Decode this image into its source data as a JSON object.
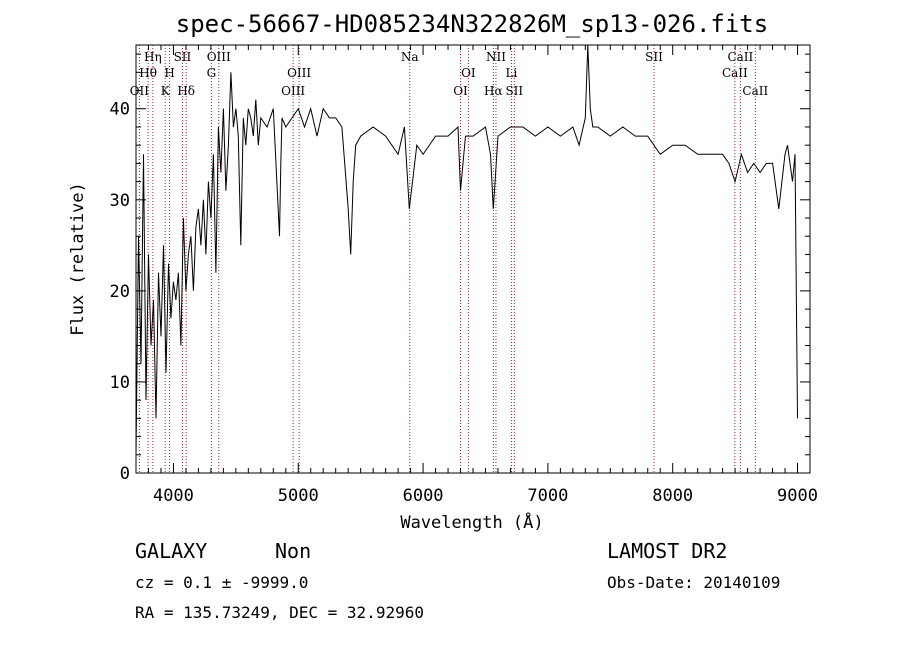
{
  "chart_data": {
    "type": "line",
    "title": "spec-56667-HD085234N322826M_sp13-026.fits",
    "xlabel": "Wavelength (Å)",
    "ylabel": "Flux (relative)",
    "xlim": [
      3700,
      9100
    ],
    "ylim": [
      0,
      47
    ],
    "xticks": [
      4000,
      5000,
      6000,
      7000,
      8000,
      9000
    ],
    "yticks": [
      0,
      10,
      20,
      30,
      40
    ],
    "series": [
      {
        "x": [
          3700,
          3720,
          3740,
          3760,
          3780,
          3800,
          3820,
          3840,
          3860,
          3880,
          3900,
          3920,
          3940,
          3960,
          3980,
          4000,
          4020,
          4040,
          4060,
          4080,
          4100,
          4120,
          4140,
          4160,
          4180,
          4200,
          4220,
          4240,
          4260,
          4280,
          4300,
          4320,
          4340,
          4360,
          4380,
          4400,
          4420,
          4440,
          4460,
          4480,
          4500,
          4520,
          4540,
          4560,
          4580,
          4600,
          4620,
          4640,
          4660,
          4680,
          4700,
          4750,
          4800,
          4850,
          4860,
          4870,
          4900,
          4950,
          5000,
          5050,
          5100,
          5150,
          5200,
          5250,
          5300,
          5350,
          5400,
          5420,
          5440,
          5460,
          5500,
          5600,
          5700,
          5800,
          5850,
          5890,
          5950,
          6000,
          6100,
          6200,
          6280,
          6300,
          6340,
          6400,
          6500,
          6540,
          6563,
          6600,
          6700,
          6800,
          6900,
          7000,
          7100,
          7200,
          7250,
          7300,
          7320,
          7340,
          7360,
          7400,
          7500,
          7600,
          7700,
          7800,
          7900,
          8000,
          8100,
          8200,
          8300,
          8400,
          8450,
          8500,
          8550,
          8600,
          8650,
          8700,
          8750,
          8800,
          8850,
          8900,
          8920,
          8940,
          8960,
          8980,
          9000
        ],
        "y": [
          2,
          26,
          12,
          35,
          8,
          24,
          14,
          19,
          6,
          22,
          15,
          25,
          11,
          23,
          17,
          21,
          19,
          22,
          14,
          28,
          20,
          24,
          26,
          20,
          27,
          29,
          25,
          30,
          24,
          32,
          28,
          35,
          22,
          38,
          33,
          40,
          31,
          36,
          44,
          38,
          40,
          37,
          25,
          39,
          36,
          40,
          39,
          37,
          41,
          36,
          39,
          38,
          40,
          26,
          34,
          39,
          38,
          39,
          40,
          38,
          40,
          37,
          40,
          39,
          39,
          38,
          29,
          24,
          32,
          36,
          37,
          38,
          37,
          35,
          38,
          29,
          36,
          35,
          37,
          37,
          38,
          31,
          37,
          37,
          38,
          35,
          29,
          37,
          38,
          38,
          37,
          38,
          37,
          38,
          36,
          39,
          47,
          40,
          38,
          38,
          37,
          38,
          37,
          37,
          35,
          36,
          36,
          35,
          35,
          35,
          34,
          32,
          35,
          33,
          34,
          33,
          34,
          34,
          29,
          35,
          36,
          34,
          32,
          35,
          6
        ]
      }
    ],
    "line_markers": [
      {
        "label": "Hη",
        "wavelength": 3835,
        "row": 1
      },
      {
        "label": "Hθ",
        "wavelength": 3797,
        "row": 2
      },
      {
        "label": "OII",
        "wavelength": 3727,
        "row": 3
      },
      {
        "label": "SII",
        "wavelength": 4072,
        "row": 1
      },
      {
        "label": "H",
        "wavelength": 3969,
        "row": 2
      },
      {
        "label": "K",
        "wavelength": 3934,
        "row": 3
      },
      {
        "label": "Hδ",
        "wavelength": 4102,
        "row": 3
      },
      {
        "label": "OIII",
        "wavelength": 4363,
        "row": 1
      },
      {
        "label": "G",
        "wavelength": 4304,
        "row": 2
      },
      {
        "label": "OIII",
        "wavelength": 5007,
        "row": 2
      },
      {
        "label": "OIII",
        "wavelength": 4959,
        "row": 3
      },
      {
        "label": "Na",
        "wavelength": 5893,
        "row": 1
      },
      {
        "label": "OI",
        "wavelength": 6363,
        "row": 2
      },
      {
        "label": "OI",
        "wavelength": 6300,
        "row": 3
      },
      {
        "label": "NII",
        "wavelength": 6584,
        "row": 1
      },
      {
        "label": "Li",
        "wavelength": 6708,
        "row": 2
      },
      {
        "label": "Hα",
        "wavelength": 6563,
        "row": 3
      },
      {
        "label": "SII",
        "wavelength": 6731,
        "row": 3
      },
      {
        "label": "SII",
        "wavelength": 7850,
        "row": 1
      },
      {
        "label": "CaII",
        "wavelength": 8542,
        "row": 1
      },
      {
        "label": "CaII",
        "wavelength": 8498,
        "row": 2
      },
      {
        "label": "CaII",
        "wavelength": 8662,
        "row": 3
      }
    ],
    "marker_color": "#aa2222",
    "grid": false
  },
  "info": {
    "class": "GALAXY",
    "subclass": "Non",
    "survey": "LAMOST DR2",
    "cz_line": "cz = 0.1 ± -9999.0",
    "obs_date": "Obs-Date: 20140109",
    "coords": "RA = 135.73249, DEC =  32.92960"
  }
}
